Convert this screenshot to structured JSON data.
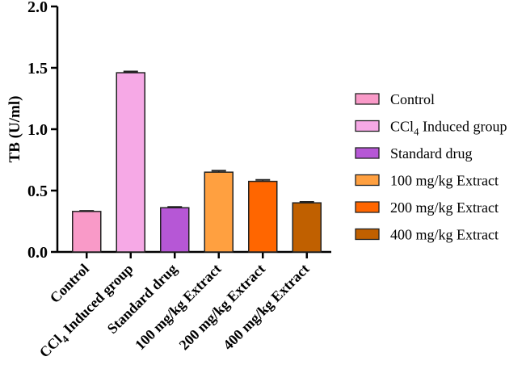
{
  "chart_data": {
    "type": "bar",
    "title": "",
    "xlabel": "",
    "ylabel": "TB (U/ml)",
    "ylim": [
      0,
      2.0
    ],
    "yticks": [
      0.0,
      0.5,
      1.0,
      1.5,
      2.0
    ],
    "ytick_labels": [
      "0.0",
      "0.5",
      "1.0",
      "1.5",
      "2.0"
    ],
    "grid": false,
    "legend_position": "right",
    "categories": [
      "Control",
      "CCl4 Induced group",
      "Standard drug",
      "100 mg/kg Extract",
      "200 mg/kg Extract",
      "400 mg/kg Extract"
    ],
    "category_labels": [
      {
        "main": "Control",
        "sub": "",
        "rest": ""
      },
      {
        "main": "CCl",
        "sub": "4",
        "rest": " Induced group"
      },
      {
        "main": "Standard drug",
        "sub": "",
        "rest": ""
      },
      {
        "main": "100 mg/kg Extract",
        "sub": "",
        "rest": ""
      },
      {
        "main": "200 mg/kg Extract",
        "sub": "",
        "rest": ""
      },
      {
        "main": "400 mg/kg Extract",
        "sub": "",
        "rest": ""
      }
    ],
    "values": [
      0.33,
      1.46,
      0.36,
      0.65,
      0.575,
      0.4
    ],
    "errors": [
      0.005,
      0.01,
      0.007,
      0.012,
      0.012,
      0.008
    ],
    "colors": [
      "#f99ac8",
      "#f6a9e6",
      "#b657d6",
      "#ffa040",
      "#ff6600",
      "#c06000"
    ],
    "legend": [
      {
        "main": "Control",
        "sub": "",
        "rest": ""
      },
      {
        "main": "CCl",
        "sub": "4",
        "rest": " Induced group"
      },
      {
        "main": "Standard drug",
        "sub": "",
        "rest": ""
      },
      {
        "main": "100 mg/kg Extract",
        "sub": "",
        "rest": ""
      },
      {
        "main": "200 mg/kg Extract",
        "sub": "",
        "rest": ""
      },
      {
        "main": "400 mg/kg Extract",
        "sub": "",
        "rest": ""
      }
    ]
  }
}
